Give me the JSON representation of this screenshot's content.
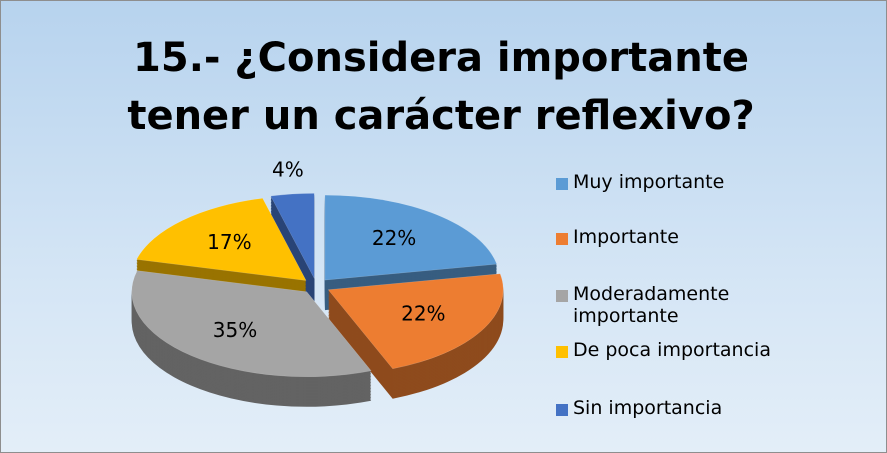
{
  "chart_data": {
    "type": "pie",
    "title": "15.- ¿Considera importante tener un carácter reflexivo?",
    "categories": [
      "Muy importante",
      "Importante",
      "Moderadamente importante",
      "De poca importancia",
      "Sin importancia"
    ],
    "values": [
      22,
      22,
      35,
      17,
      4
    ],
    "value_labels": [
      "22%",
      "22%",
      "35%",
      "17%",
      "4%"
    ],
    "colors": [
      "#5b9bd5",
      "#ed7d31",
      "#a5a5a5",
      "#ffc000",
      "#4472c4"
    ],
    "legend": "right"
  }
}
